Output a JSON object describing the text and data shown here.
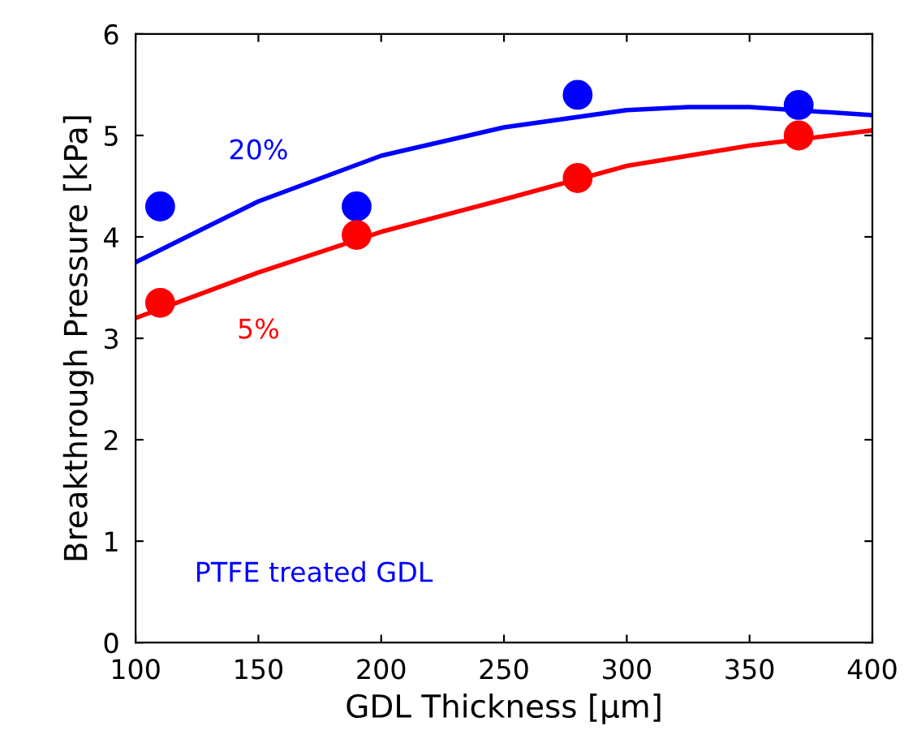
{
  "chart_data": {
    "type": "line",
    "xlabel": "GDL Thickness [µm]",
    "ylabel": "Breakthrough Pressure [kPa]",
    "xlim": [
      100,
      400
    ],
    "ylim": [
      0,
      6
    ],
    "xticks": [
      100,
      150,
      200,
      250,
      300,
      350,
      400
    ],
    "yticks": [
      0,
      1,
      2,
      3,
      4,
      5,
      6
    ],
    "grid": false,
    "legend": false,
    "annotations": [
      "PTFE treated GDL"
    ],
    "series": [
      {
        "type": "scatter",
        "marker": "circle",
        "color": "#0000ff",
        "x": [
          110,
          190,
          280,
          370
        ],
        "values": [
          4.3,
          4.3,
          5.4,
          5.3
        ]
      },
      {
        "type": "scatter",
        "marker": "circle",
        "color": "#ff0000",
        "x": [
          110,
          190,
          280,
          370
        ],
        "values": [
          3.35,
          4.02,
          4.58,
          5.0
        ]
      },
      {
        "name": "20%",
        "marker": "none",
        "color": "#0000ff",
        "line_style": "solid",
        "x": [
          100,
          150,
          200,
          250,
          300,
          325,
          350,
          400
        ],
        "values": [
          3.75,
          4.35,
          4.8,
          5.08,
          5.25,
          5.28,
          5.28,
          5.2
        ]
      },
      {
        "name": "5%",
        "marker": "none",
        "color": "#ff0000",
        "line_style": "solid",
        "x": [
          100,
          150,
          200,
          250,
          300,
          350,
          400
        ],
        "values": [
          3.2,
          3.65,
          4.05,
          4.37,
          4.7,
          4.9,
          5.05
        ]
      }
    ]
  }
}
